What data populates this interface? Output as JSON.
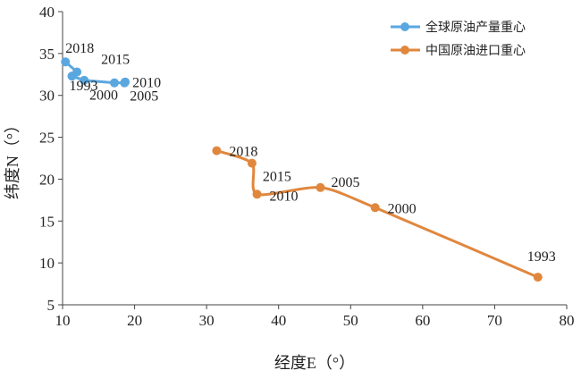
{
  "chart_data": {
    "type": "line",
    "title": "",
    "xlabel": "经度E（°）",
    "ylabel": "纬度N（°）",
    "xlim": [
      10,
      80
    ],
    "ylim": [
      5,
      40
    ],
    "x_ticks": [
      10,
      20,
      30,
      40,
      50,
      60,
      70,
      80
    ],
    "y_ticks": [
      5,
      10,
      15,
      20,
      25,
      30,
      35,
      40
    ],
    "grid": false,
    "legend_position": "top-right",
    "series": [
      {
        "name": "全球原油产量重心",
        "color": "#5aa7e0",
        "points": [
          {
            "x": 10.4,
            "y": 34.0,
            "label": "2018"
          },
          {
            "x": 12.0,
            "y": 32.8,
            "label": "2015"
          },
          {
            "x": 11.3,
            "y": 32.3,
            "label": "1993"
          },
          {
            "x": 13.0,
            "y": 31.8,
            "label": ""
          },
          {
            "x": 17.2,
            "y": 31.5,
            "label": "2000"
          },
          {
            "x": 18.6,
            "y": 31.5,
            "label": "2005"
          },
          {
            "x": 18.7,
            "y": 31.6,
            "label": "2010"
          }
        ]
      },
      {
        "name": "中国原油进口重心",
        "color": "#e0873e",
        "points": [
          {
            "x": 31.4,
            "y": 23.4,
            "label": "2018"
          },
          {
            "x": 36.3,
            "y": 21.9,
            "label": "2015"
          },
          {
            "x": 37.0,
            "y": 18.2,
            "label": "2010"
          },
          {
            "x": 45.8,
            "y": 19.0,
            "label": "2005"
          },
          {
            "x": 53.4,
            "y": 16.6,
            "label": "2000"
          },
          {
            "x": 76.0,
            "y": 8.3,
            "label": "1993"
          }
        ]
      }
    ]
  }
}
